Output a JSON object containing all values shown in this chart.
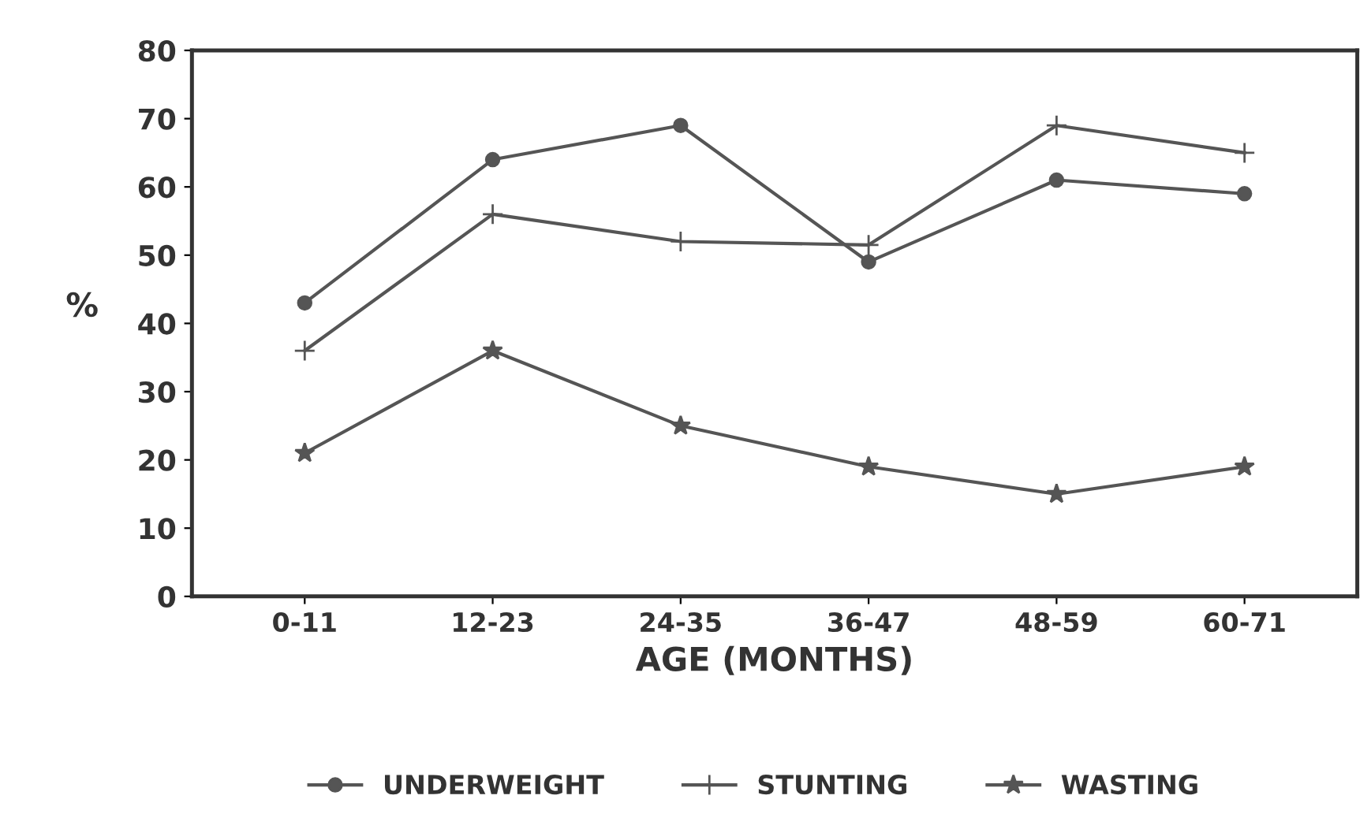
{
  "chart_data": {
    "type": "line",
    "xlabel": "AGE (MONTHS)",
    "ylabel": "%",
    "categories": [
      "0-11",
      "12-23",
      "24-35",
      "36-47",
      "48-59",
      "60-71"
    ],
    "ylim": [
      0,
      80
    ],
    "yticks": [
      0,
      10,
      20,
      30,
      40,
      50,
      60,
      70,
      80
    ],
    "grid": false,
    "legend": "bottom",
    "series": [
      {
        "name": "UNDERWEIGHT",
        "color": "#555555",
        "marker": "circle",
        "values": [
          43,
          64,
          69,
          49,
          61,
          59
        ]
      },
      {
        "name": "STUNTING",
        "color": "#555555",
        "marker": "cross",
        "values": [
          36,
          56,
          52,
          51.5,
          69,
          65
        ]
      },
      {
        "name": "WASTING",
        "color": "#555555",
        "marker": "star",
        "values": [
          21,
          36,
          25,
          19,
          15,
          19
        ]
      }
    ]
  }
}
